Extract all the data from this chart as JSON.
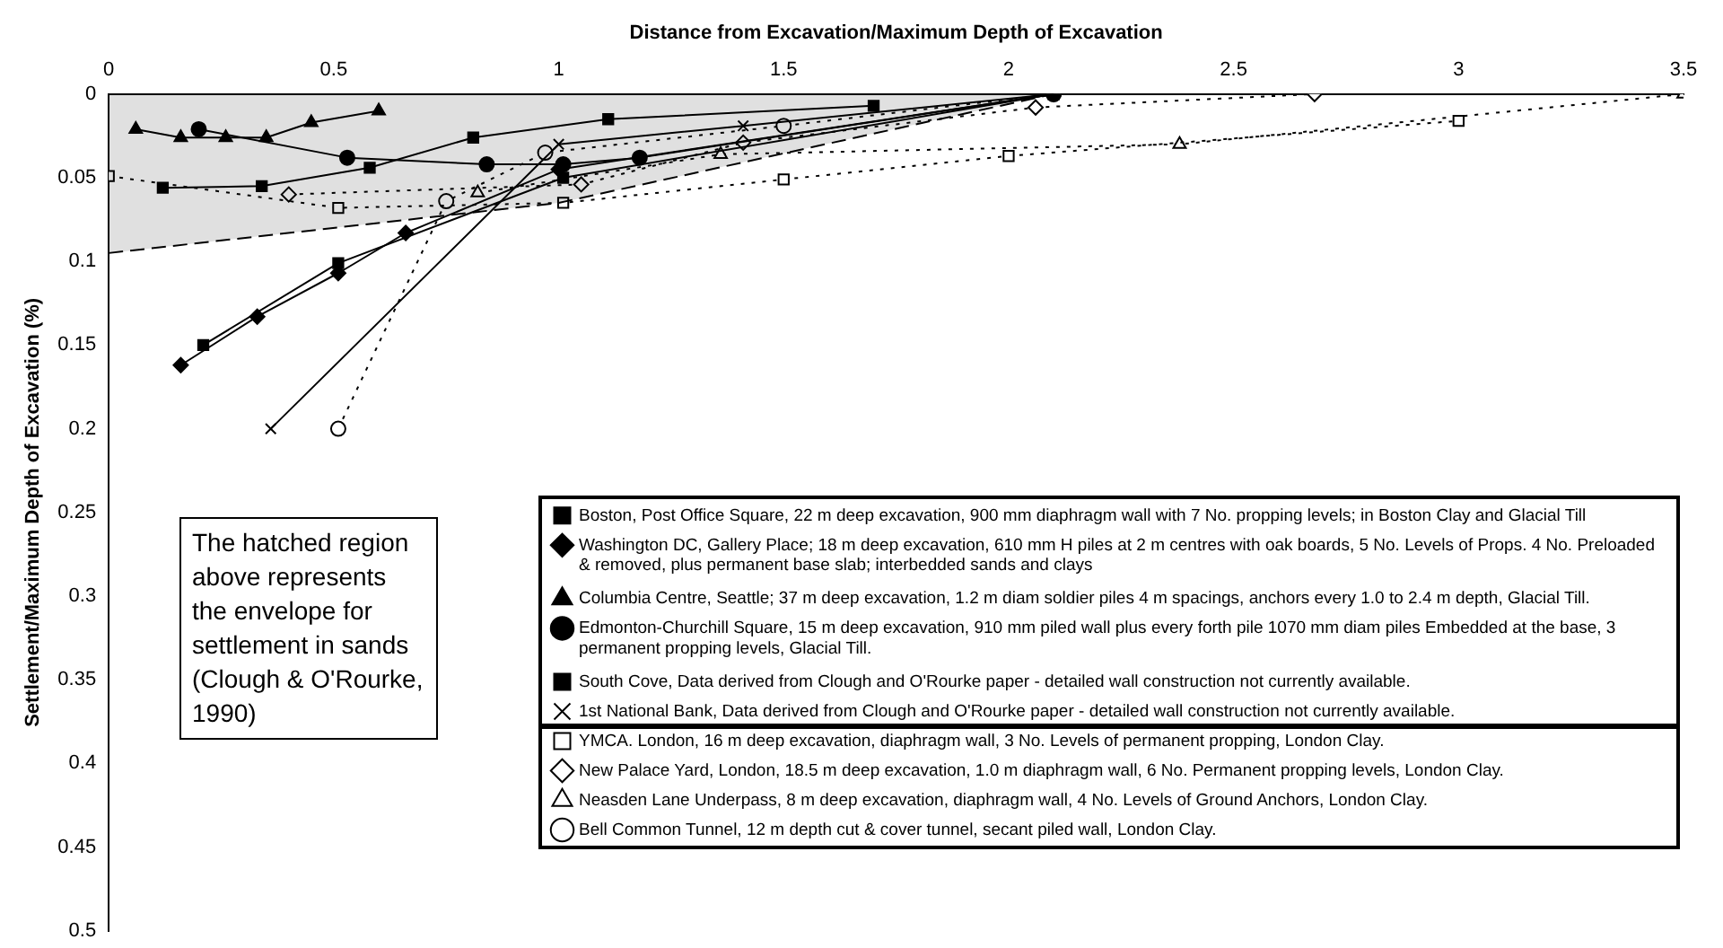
{
  "chart_data": {
    "type": "line",
    "xlabel": "Distance from Excavation/Maximum Depth of Excavation",
    "ylabel": "Settlement/Maximum Depth of Excavation (%)",
    "xlim": [
      0,
      3.5
    ],
    "xticks": [
      0,
      0.5,
      1,
      1.5,
      2,
      2.5,
      3,
      3.5
    ],
    "ylim": [
      0.5,
      0
    ],
    "yticks": [
      0,
      0.05,
      0.1,
      0.15,
      0.2,
      0.25,
      0.3,
      0.35,
      0.4,
      0.45,
      0.5
    ],
    "grid": false,
    "legend": "bottom right",
    "annotations": [
      "The hatched region above represents the envelope for settlement in sands (Clough & O'Rourke, 1990)"
    ],
    "series": [
      {
        "type": "area",
        "color": "#000000",
        "line_style": "dashed",
        "marker": "none",
        "x": [
          0,
          1,
          2.1
        ],
        "values": [
          0.095,
          0.065,
          0
        ]
      },
      {
        "name": "Boston, Post Office Square, 22 m deep excavation, 900 mm diaphragm wall with 7 No. propping levels; in Boston Clay and Glacial Till",
        "color": "#000000",
        "line_style": "solid",
        "marker": "square",
        "x": [
          0.12,
          0.34,
          0.58,
          0.81,
          1.11,
          1.7
        ],
        "values": [
          0.056,
          0.055,
          0.044,
          0.026,
          0.015,
          0.007
        ]
      },
      {
        "name": "Washington DC, Gallery Place; 18 m deep excavation, 610 mm H piles at 2 m centres with oak boards, 5 No. Levels of Props. 4 No. Preloaded & removed, plus permanent base slab; interbedded sands and clays",
        "color": "#000000",
        "line_style": "solid",
        "marker": "diamond",
        "x": [
          0.16,
          0.33,
          0.51,
          0.66,
          1.0,
          2.1
        ],
        "values": [
          0.162,
          0.133,
          0.107,
          0.083,
          0.045,
          0
        ]
      },
      {
        "name": "Columbia Centre, Seattle; 37 m deep excavation, 1.2 m diam soldier piles 4 m spacings, anchors every 1.0 to 2.4 m depth, Glacial Till.",
        "color": "#000000",
        "line_style": "solid",
        "marker": "triangle",
        "x": [
          0.06,
          0.16,
          0.26,
          0.35,
          0.45,
          0.6
        ],
        "values": [
          0.021,
          0.026,
          0.026,
          0.026,
          0.017,
          0.01
        ]
      },
      {
        "name": "Edmonton-Churchill Square, 15 m deep excavation, 910 mm piled wall plus every forth pile 1070 mm diam piles Embedded at the base, 3 permanent propping levels, Glacial Till.",
        "color": "#000000",
        "line_style": "solid",
        "marker": "circle",
        "x": [
          0.2,
          0.53,
          0.84,
          1.01,
          1.18,
          2.1
        ],
        "values": [
          0.021,
          0.038,
          0.042,
          0.042,
          0.038,
          0
        ]
      },
      {
        "name": "South Cove, Data derived from Clough and O'Rourke paper - detailed wall construction not currently available.",
        "color": "#000000",
        "line_style": "solid",
        "marker": "square",
        "x": [
          0.21,
          0.51,
          1.01,
          2.1
        ],
        "values": [
          0.15,
          0.101,
          0.05,
          0
        ]
      },
      {
        "name": "1st National Bank, Data derived from Clough and O'Rourke paper - detailed wall construction not currently available.",
        "color": "#000000",
        "line_style": "solid",
        "marker": "cross",
        "x": [
          0.36,
          1.0,
          1.41,
          2.1
        ],
        "values": [
          0.2,
          0.03,
          0.019,
          0
        ]
      },
      {
        "name": "YMCA. London, 16 m deep excavation, diaphragm wall, 3 No. Levels of permanent propping, London Clay.",
        "color": "#000000",
        "line_style": "dotted",
        "marker": "square",
        "x": [
          0,
          0.51,
          1.01,
          1.5,
          2.0,
          3.0
        ],
        "values": [
          0.049,
          0.068,
          0.065,
          0.051,
          0.037,
          0.016
        ]
      },
      {
        "name": "New Palace Yard, London, 18.5 m deep excavation, 1.0 m diaphragm wall, 6 No. Permanent propping levels, London Clay.",
        "color": "#000000",
        "line_style": "dotted",
        "marker": "diamond",
        "x": [
          0.4,
          1.05,
          1.41,
          2.06,
          2.68
        ],
        "values": [
          0.06,
          0.054,
          0.029,
          0.008,
          0
        ]
      },
      {
        "name": "Neasden Lane Underpass, 8 m deep excavation, diaphragm wall, 4 No. Levels of Ground Anchors, London Clay.",
        "color": "#000000",
        "line_style": "dotted",
        "marker": "triangle",
        "x": [
          0.82,
          1.36,
          2.38,
          3.5
        ],
        "values": [
          0.059,
          0.036,
          0.03,
          0
        ]
      },
      {
        "name": "Bell Common Tunnel, 12 m depth cut & cover tunnel, secant piled wall, London Clay.",
        "color": "#000000",
        "line_style": "dotted",
        "marker": "circle",
        "x": [
          0.51,
          0.75,
          0.97,
          1.5,
          2.1
        ],
        "values": [
          0.2,
          0.064,
          0.035,
          0.019,
          0
        ]
      }
    ]
  }
}
